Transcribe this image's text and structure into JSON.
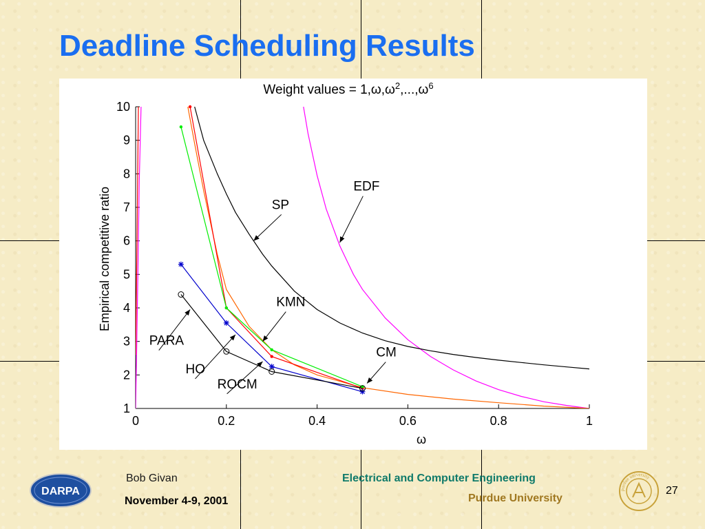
{
  "slide": {
    "title": "Deadline Scheduling Results",
    "page_number": "27"
  },
  "footer": {
    "author": "Bob Givan",
    "date": "November 4-9, 2001",
    "department": "Electrical and Computer Engineering",
    "university": "Purdue University"
  },
  "logos": {
    "darpa": "DARPA",
    "purdue_seal": "purdue university"
  },
  "chart_data": {
    "type": "line",
    "title": "Weight values = 1,ω,ω²,...,ω⁶",
    "title_parts": {
      "base": "Weight values = 1,ω,ω",
      "sup1": "2",
      "mid": ",...,ω",
      "sup2": "6"
    },
    "xlabel": "ω",
    "ylabel": "Empirical competitive ratio",
    "xlim": [
      0,
      1
    ],
    "ylim": [
      1,
      10
    ],
    "xticks": [
      0,
      0.2,
      0.4,
      0.6,
      0.8,
      1
    ],
    "xtick_labels": [
      "0",
      "0.2",
      "0.4",
      "0.6",
      "0.8",
      "1"
    ],
    "yticks": [
      1,
      2,
      3,
      4,
      5,
      6,
      7,
      8,
      9,
      10
    ],
    "ytick_labels": [
      "1",
      "2",
      "3",
      "4",
      "5",
      "6",
      "7",
      "8",
      "9",
      "10"
    ],
    "grid": false,
    "series": [
      {
        "name": "EDF",
        "color": "#ff00ff",
        "marker": "none",
        "x": [
          0.37,
          0.38,
          0.4,
          0.42,
          0.45,
          0.48,
          0.5,
          0.55,
          0.6,
          0.65,
          0.7,
          0.75,
          0.8,
          0.85,
          0.9,
          0.95,
          1.0
        ],
        "y": [
          10,
          9.2,
          7.95,
          6.95,
          5.85,
          5.0,
          4.55,
          3.7,
          3.05,
          2.55,
          2.15,
          1.82,
          1.56,
          1.36,
          1.2,
          1.09,
          1.0
        ]
      },
      {
        "name": "SP",
        "color": "#000000",
        "marker": "none",
        "x": [
          0.13,
          0.15,
          0.18,
          0.2,
          0.22,
          0.25,
          0.28,
          0.3,
          0.35,
          0.4,
          0.45,
          0.5,
          0.55,
          0.6,
          0.65,
          0.7,
          0.75,
          0.8,
          0.85,
          0.9,
          0.95,
          1.0
        ],
        "y": [
          10,
          9.0,
          8.0,
          7.4,
          6.85,
          6.2,
          5.6,
          5.25,
          4.5,
          3.95,
          3.55,
          3.25,
          3.02,
          2.85,
          2.72,
          2.61,
          2.52,
          2.44,
          2.37,
          2.3,
          2.24,
          2.18
        ]
      },
      {
        "name": "CM",
        "color": "#ff6600",
        "marker": "none",
        "x": [
          0.115,
          0.13,
          0.15,
          0.18,
          0.2,
          0.25,
          0.3,
          0.35,
          0.4,
          0.5,
          0.6,
          0.7,
          0.8,
          0.9,
          1.0
        ],
        "y": [
          10,
          8.9,
          7.5,
          5.6,
          4.55,
          3.45,
          2.75,
          2.3,
          2.0,
          1.62,
          1.42,
          1.28,
          1.17,
          1.07,
          1.0
        ]
      },
      {
        "name": "KMN",
        "color": "#ff0000",
        "marker": "dot",
        "x": [
          0.12,
          0.2,
          0.3,
          0.5
        ],
        "y": [
          10,
          4.0,
          2.55,
          1.6
        ]
      },
      {
        "name": "ROCM",
        "color": "#00ee00",
        "marker": "dot",
        "x": [
          0.1,
          0.2,
          0.3,
          0.5
        ],
        "y": [
          9.4,
          4.0,
          2.75,
          1.65
        ]
      },
      {
        "name": "HO",
        "color": "#0000cc",
        "marker": "star",
        "x": [
          0.1,
          0.2,
          0.3,
          0.5
        ],
        "y": [
          5.3,
          3.55,
          2.25,
          1.5
        ]
      },
      {
        "name": "PARA",
        "color": "#000000",
        "marker": "circle",
        "x": [
          0.1,
          0.2,
          0.3,
          0.5
        ],
        "y": [
          4.4,
          2.7,
          2.1,
          1.6
        ]
      },
      {
        "name": "Magenta-left",
        "color": "#ff00ff",
        "marker": "none",
        "x": [
          0.0,
          0.002,
          0.005,
          0.008,
          0.012
        ],
        "y": [
          1.0,
          2.5,
          5.0,
          7.8,
          10
        ]
      },
      {
        "name": "Red-left",
        "color": "#ff0000",
        "marker": "none",
        "x": [
          0.0,
          0.003,
          0.006
        ],
        "y": [
          2.6,
          6.0,
          10
        ]
      }
    ],
    "annotations": [
      {
        "text": "EDF",
        "label": [
          0.48,
          7.5
        ],
        "arrow_to": [
          0.45,
          5.95
        ]
      },
      {
        "text": "SP",
        "label": [
          0.3,
          6.95
        ],
        "arrow_to": [
          0.26,
          6.0
        ]
      },
      {
        "text": "KMN",
        "label": [
          0.31,
          4.05
        ],
        "arrow_to": [
          0.28,
          3.0
        ]
      },
      {
        "text": "CM",
        "label": [
          0.53,
          2.55
        ],
        "arrow_to": [
          0.51,
          1.75
        ]
      },
      {
        "text": "PARA",
        "label": [
          0.03,
          2.9
        ],
        "arrow_to": [
          0.12,
          3.95
        ]
      },
      {
        "text": "HO",
        "label": [
          0.11,
          2.05
        ],
        "arrow_to": [
          0.22,
          3.2
        ]
      },
      {
        "text": "ROCM",
        "label": [
          0.18,
          1.6
        ],
        "arrow_to": [
          0.28,
          2.4
        ]
      }
    ]
  }
}
